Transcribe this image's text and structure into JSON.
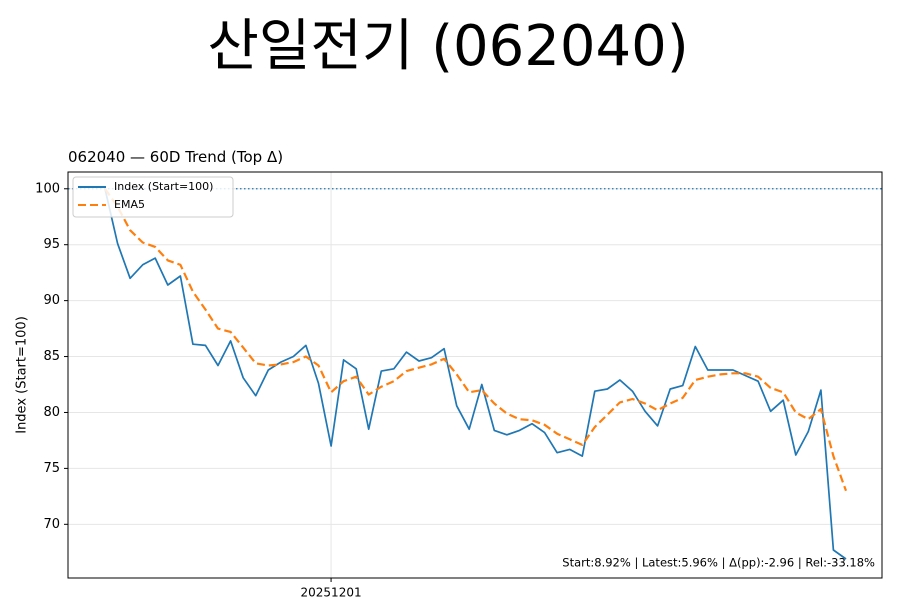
{
  "page_title": "산일전기 (062040)",
  "chart_data": {
    "type": "line",
    "title": "062040 — 60D Trend (Top Δ)",
    "y_label": "Index (Start=100)",
    "annotation": "Start:8.92% | Latest:5.96% | Δ(pp):-2.96 | Rel:-33.18%",
    "categories": [
      null,
      null,
      null,
      null,
      null,
      null,
      null,
      null,
      null,
      null,
      null,
      null,
      null,
      null,
      null,
      null,
      null,
      null,
      "20251201",
      null,
      null,
      null,
      null,
      null,
      null,
      null,
      null,
      null,
      null,
      null,
      null,
      null,
      null,
      null,
      null,
      null,
      null,
      null,
      null,
      null,
      null,
      null,
      null,
      null,
      null,
      null,
      null,
      null,
      null,
      null,
      null,
      null,
      null,
      null,
      null,
      null,
      null,
      null,
      null,
      null
    ],
    "series": [
      {
        "name": "Index (Start=100)",
        "color": "#1f77b4",
        "linestyle": "solid",
        "values": [
          100,
          95.1,
          92.0,
          93.2,
          93.8,
          91.4,
          92.2,
          86.1,
          86.0,
          84.2,
          86.4,
          83.1,
          81.5,
          83.8,
          84.5,
          85.0,
          86.0,
          82.6,
          77.0,
          84.7,
          83.9,
          78.5,
          83.7,
          83.9,
          85.4,
          84.6,
          84.9,
          85.7,
          80.6,
          78.5,
          82.5,
          78.4,
          78.0,
          78.4,
          79.0,
          78.2,
          76.4,
          76.7,
          76.1,
          81.9,
          82.1,
          82.9,
          81.9,
          80.1,
          78.8,
          82.1,
          82.4,
          85.9,
          83.8,
          83.8,
          83.8,
          83.3,
          82.8,
          80.1,
          81.1,
          76.2,
          78.3,
          82.0,
          67.7,
          66.9
        ]
      },
      {
        "name": "EMA5",
        "color": "#ff7f0e",
        "linestyle": "dashed",
        "values": [
          100,
          98.4,
          96.3,
          95.2,
          94.8,
          93.6,
          93.2,
          90.8,
          89.2,
          87.5,
          87.2,
          85.8,
          84.4,
          84.2,
          84.3,
          84.5,
          85.0,
          84.2,
          81.8,
          82.8,
          83.2,
          81.6,
          82.3,
          82.8,
          83.7,
          84.0,
          84.3,
          84.8,
          83.4,
          81.8,
          82.0,
          80.8,
          79.9,
          79.4,
          79.3,
          78.9,
          78.1,
          77.6,
          77.1,
          78.7,
          79.8,
          80.9,
          81.2,
          80.8,
          80.2,
          80.8,
          81.3,
          82.9,
          83.2,
          83.4,
          83.5,
          83.5,
          83.2,
          82.2,
          81.8,
          80.0,
          79.4,
          80.3,
          76.1,
          73.0
        ]
      }
    ],
    "hline": {
      "value": 100,
      "color": "#1f77b4",
      "linestyle": "dotted"
    },
    "ylim": [
      65.2,
      101.5
    ],
    "yticks": [
      70,
      75,
      80,
      85,
      90,
      95,
      100
    ],
    "grid": true,
    "legend": "upper left"
  }
}
